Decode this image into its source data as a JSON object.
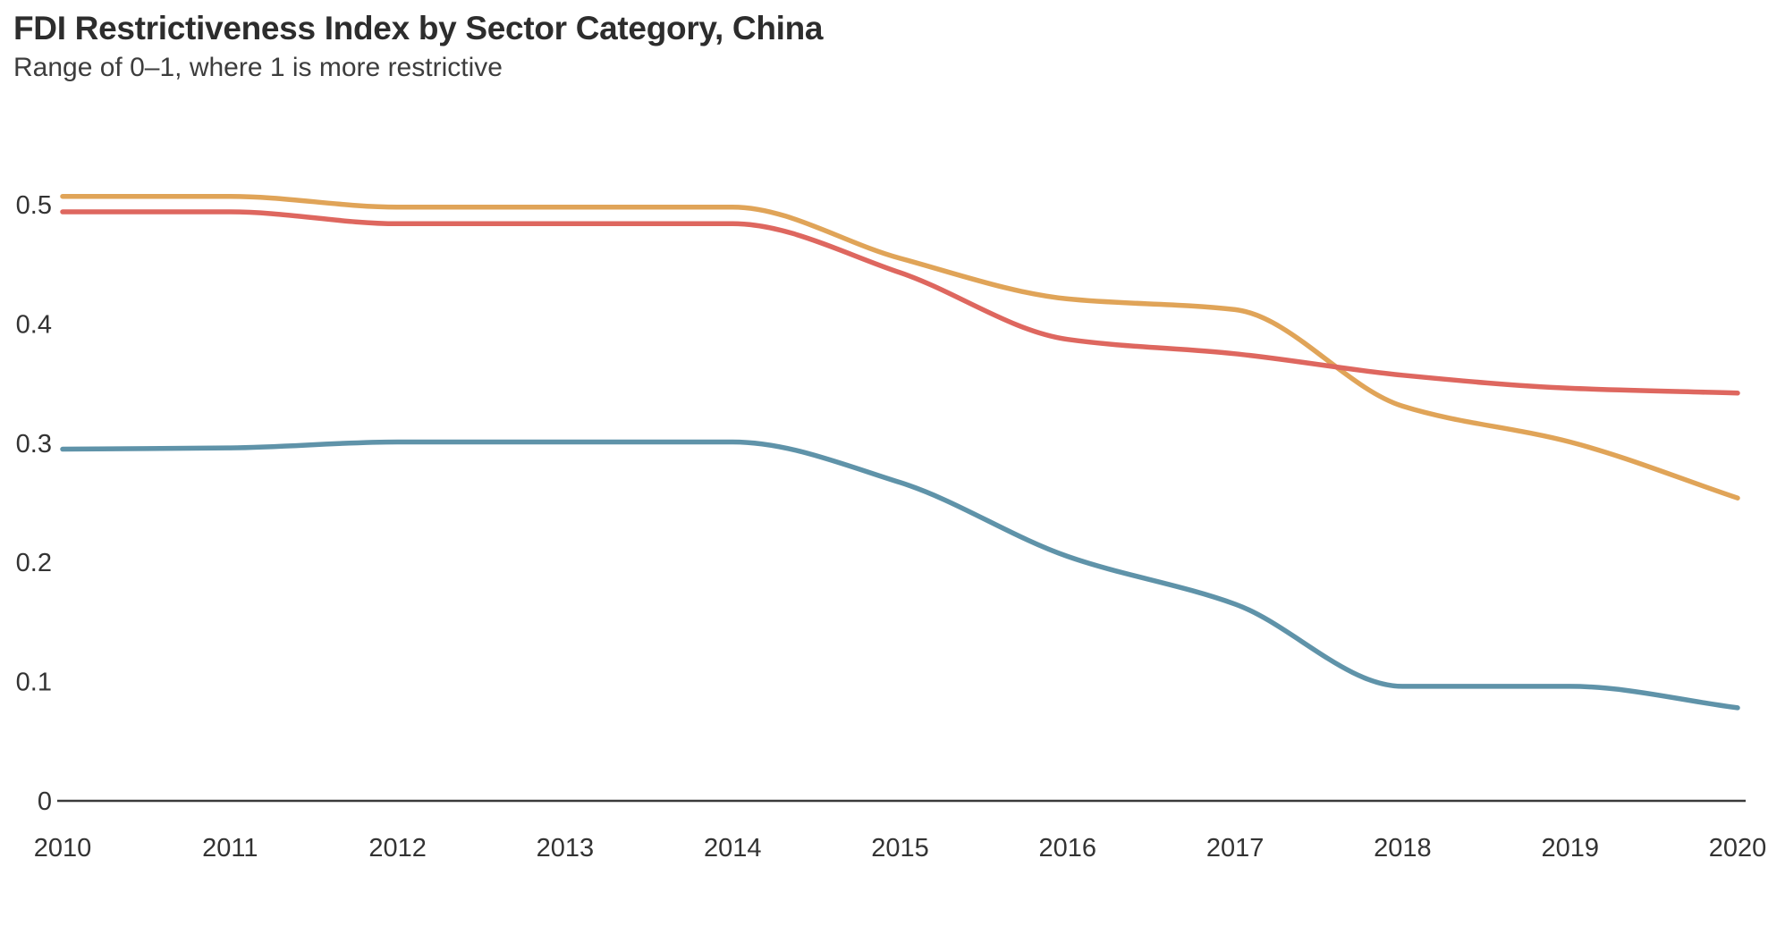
{
  "header": {
    "title": "FDI Restrictiveness Index by Sector Category, China",
    "subtitle": "Range of 0–1, where 1 is more restrictive"
  },
  "chart_data": {
    "type": "line",
    "x": [
      2010,
      2011,
      2012,
      2013,
      2014,
      2015,
      2016,
      2017,
      2018,
      2019,
      2020
    ],
    "x_tick_labels": [
      "2010",
      "2011",
      "2012",
      "2013",
      "2014",
      "2015",
      "2016",
      "2017",
      "2018",
      "2019",
      "2020"
    ],
    "series": [
      {
        "name": "series-orange",
        "color": "#E0A458",
        "values": [
          0.507,
          0.507,
          0.498,
          0.498,
          0.498,
          0.455,
          0.421,
          0.412,
          0.331,
          0.301,
          0.254
        ]
      },
      {
        "name": "series-red",
        "color": "#DE675F",
        "values": [
          0.494,
          0.494,
          0.484,
          0.484,
          0.484,
          0.443,
          0.387,
          0.375,
          0.357,
          0.346,
          0.342
        ]
      },
      {
        "name": "series-blue",
        "color": "#5F93A9",
        "values": [
          0.295,
          0.296,
          0.301,
          0.301,
          0.301,
          0.267,
          0.205,
          0.165,
          0.096,
          0.096,
          0.078
        ]
      }
    ],
    "title": "FDI Restrictiveness Index by Sector Category, China",
    "subtitle": "Range of 0–1, where 1 is more restrictive",
    "xlabel": "",
    "ylabel": "",
    "ylim": [
      0,
      0.55
    ],
    "xlim": [
      2010,
      2020
    ],
    "yticks": [
      0,
      0.1,
      0.2,
      0.3,
      0.4,
      0.5
    ],
    "ytick_labels": [
      "0",
      "0.1",
      "0.2",
      "0.3",
      "0.4",
      "0.5"
    ],
    "grid": false,
    "legend": "none",
    "line_width": 5.5,
    "axis_color": "#3a3a3a",
    "text_color": "#333333"
  }
}
